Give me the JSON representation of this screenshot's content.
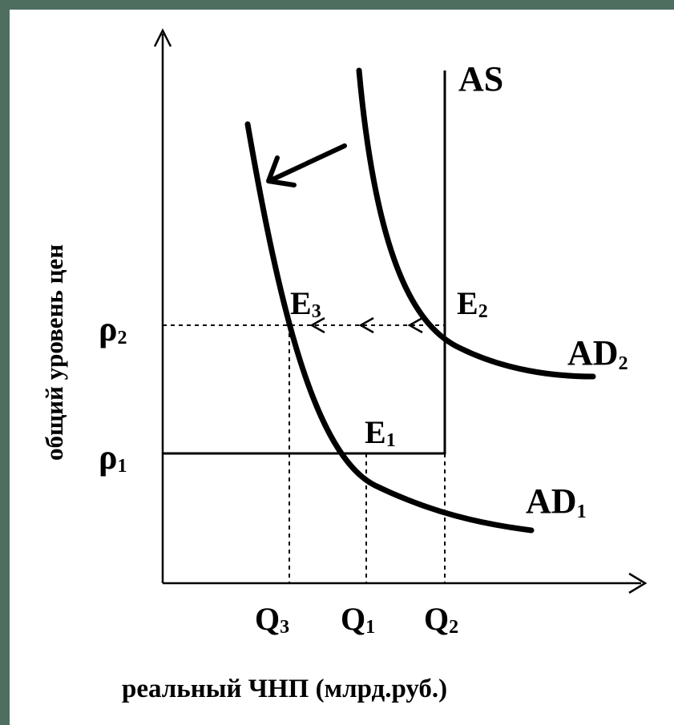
{
  "diagram": {
    "curves": {
      "as": "AS",
      "ad1": {
        "main": "AD",
        "sub": "1"
      },
      "ad2": {
        "main": "AD",
        "sub": "2"
      }
    },
    "points": {
      "e1": {
        "main": "E",
        "sub": "1"
      },
      "e2": {
        "main": "E",
        "sub": "2"
      },
      "e3": {
        "main": "E",
        "sub": "3"
      }
    },
    "y_ticks": {
      "p1": {
        "main": "ρ",
        "sub": "1"
      },
      "p2": {
        "main": "ρ",
        "sub": "2"
      }
    },
    "x_ticks": {
      "q3": {
        "main": "Q",
        "sub": "3"
      },
      "q1": {
        "main": "Q",
        "sub": "1"
      },
      "q2": {
        "main": "Q",
        "sub": "2"
      }
    },
    "y_axis_label": "общий уровень цен",
    "x_axis_label": "реальный ЧНП (млрд.руб.)"
  }
}
